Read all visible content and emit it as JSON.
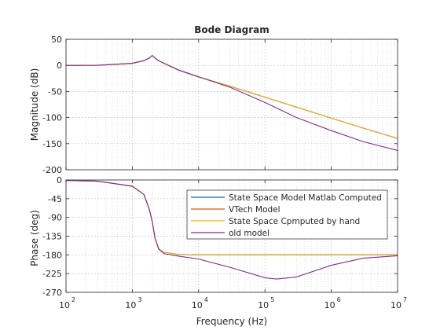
{
  "chart_data": {
    "type": "line",
    "title": "Bode Diagram",
    "xlabel": "Frequency  (Hz)",
    "x_scale": "log",
    "xlim": [
      100,
      10000000
    ],
    "x_tick_labels": [
      {
        "base": "10",
        "exp": "2"
      },
      {
        "base": "10",
        "exp": "3"
      },
      {
        "base": "10",
        "exp": "4"
      },
      {
        "base": "10",
        "exp": "5"
      },
      {
        "base": "10",
        "exp": "6"
      },
      {
        "base": "10",
        "exp": "7"
      }
    ],
    "grid": true,
    "legend_placement": "right",
    "colors": {
      "State Space Model Matlab Computed": "#0072BD",
      "VTech Model": "#D95319",
      "State Space Cpmputed by hand": "#EDB120",
      "old model": "#7E2F8E"
    },
    "magnitude_panel": {
      "ylabel": "Magnitude (dB)",
      "ylim": [
        -200,
        50
      ],
      "yticks": [
        50,
        0,
        -50,
        -100,
        -150,
        -200
      ],
      "x": [
        100,
        300,
        1000,
        1500,
        1800,
        2000,
        2200,
        2500,
        3000,
        5000,
        10000,
        30000,
        100000,
        300000,
        1000000,
        3000000,
        10000000
      ],
      "series": [
        {
          "name": "State Space Model Matlab Computed",
          "values": [
            0,
            0.2,
            4,
            9,
            14,
            19,
            14,
            9,
            4,
            -9,
            -22,
            -40,
            -61,
            -80,
            -101,
            -120,
            -140
          ]
        },
        {
          "name": "VTech Model",
          "values": [
            0,
            0.2,
            4,
            9,
            14,
            19,
            14,
            9,
            4,
            -9,
            -22,
            -40,
            -61,
            -80,
            -101,
            -120,
            -140
          ]
        },
        {
          "name": "State Space Cpmputed by hand",
          "values": [
            0,
            0.2,
            4,
            9,
            14,
            19,
            14,
            9,
            4,
            -9,
            -22,
            -40,
            -61,
            -80,
            -101,
            -120,
            -140
          ]
        },
        {
          "name": "old model",
          "values": [
            0,
            0.2,
            4,
            9,
            14,
            19,
            14,
            9,
            4,
            -9,
            -22,
            -42,
            -71,
            -100,
            -125,
            -146,
            -163
          ]
        }
      ]
    },
    "phase_panel": {
      "ylabel": "Phase (deg)",
      "ylim": [
        -270,
        0
      ],
      "yticks": [
        0,
        -45,
        -90,
        -135,
        -180,
        -225,
        -270
      ],
      "x": [
        100,
        300,
        1000,
        1500,
        1800,
        2000,
        2200,
        2500,
        3000,
        5000,
        10000,
        30000,
        100000,
        150000,
        300000,
        1000000,
        3000000,
        10000000
      ],
      "series": [
        {
          "name": "State Space Model Matlab Computed",
          "values": [
            -1,
            -3,
            -15,
            -35,
            -70,
            -100,
            -140,
            -165,
            -174,
            -179,
            -180,
            -180,
            -180,
            -180,
            -180,
            -180,
            -180,
            -180
          ]
        },
        {
          "name": "VTech Model",
          "values": [
            -1,
            -3,
            -15,
            -35,
            -70,
            -100,
            -140,
            -165,
            -174,
            -179,
            -180,
            -180,
            -180,
            -180,
            -180,
            -180,
            -180,
            -180
          ]
        },
        {
          "name": "State Space Cpmputed by hand",
          "values": [
            -1,
            -3,
            -15,
            -35,
            -70,
            -100,
            -140,
            -165,
            -174,
            -179,
            -180,
            -180,
            -180,
            -180,
            -180,
            -180,
            -180,
            -180
          ]
        },
        {
          "name": "old model",
          "values": [
            -1,
            -3,
            -15,
            -35,
            -70,
            -100,
            -140,
            -166,
            -177,
            -183,
            -190,
            -210,
            -235,
            -238,
            -233,
            -205,
            -188,
            -182
          ]
        }
      ]
    }
  }
}
